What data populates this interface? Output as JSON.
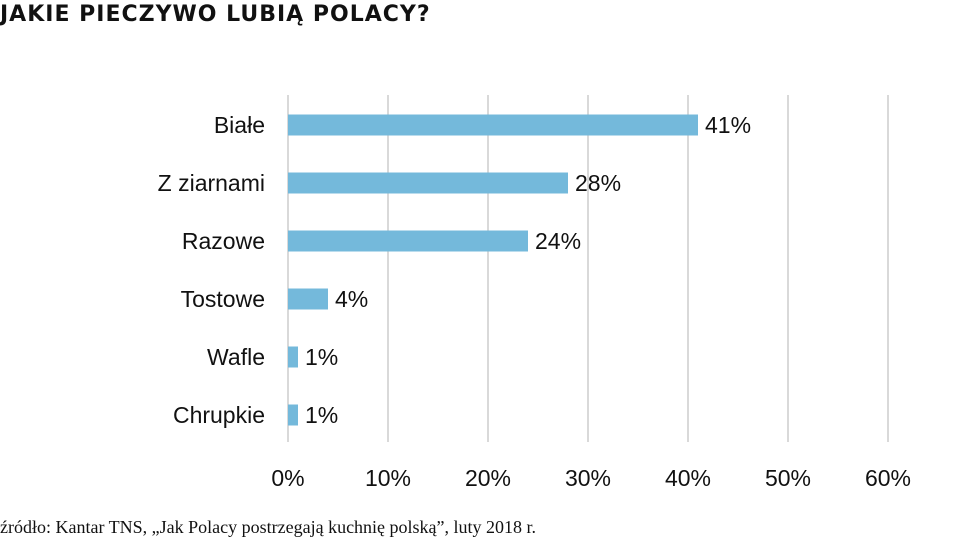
{
  "title": "JAKIE PIECZYWO LUBIĄ POLACY?",
  "source": "źródło: Kantar TNS, „Jak Polacy postrzegają kuchnię polską”, luty 2018 r.",
  "colors": {
    "bar": "#74b9db",
    "grid": "#d9d9d9",
    "text": "#111111"
  },
  "chart_data": {
    "type": "bar",
    "orientation": "horizontal",
    "categories": [
      "Białe",
      "Z ziarnami",
      "Razowe",
      "Tostowe",
      "Wafle",
      "Chrupkie"
    ],
    "values": [
      41,
      28,
      24,
      4,
      1,
      1
    ],
    "value_labels": [
      "41%",
      "28%",
      "24%",
      "4%",
      "1%",
      "1%"
    ],
    "xticks": [
      0,
      10,
      20,
      30,
      40,
      50,
      60
    ],
    "xtick_labels": [
      "0%",
      "10%",
      "20%",
      "30%",
      "40%",
      "50%",
      "60%"
    ],
    "xlim": [
      0,
      60
    ],
    "grid": true,
    "title": "JAKIE PIECZYWO LUBIĄ POLACY?"
  }
}
